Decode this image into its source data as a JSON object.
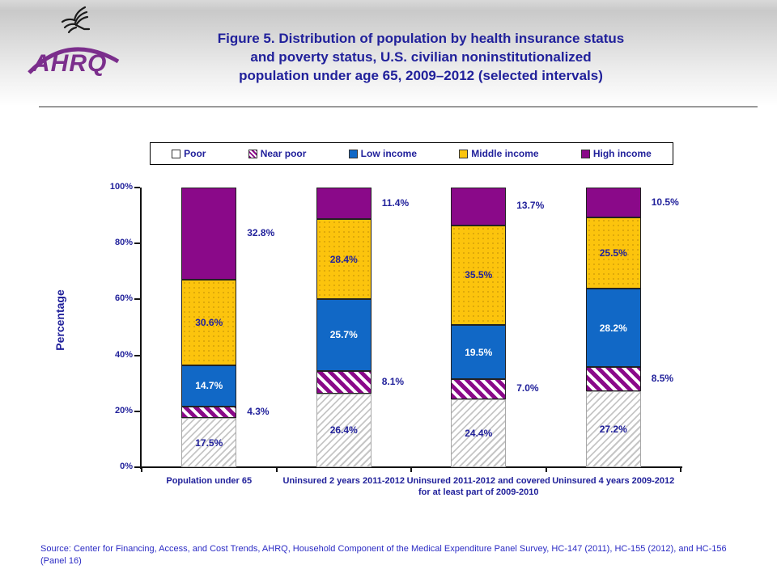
{
  "header": {
    "logo_text": "AHRQ",
    "eagle_icon": "hhs-eagle-icon",
    "title_lines": [
      "Figure 5. Distribution of population by health insurance status",
      "and poverty status, U.S. civilian noninstitutionalized",
      "population under age 65, 2009–2012 (selected intervals)"
    ]
  },
  "legend": {
    "items": [
      {
        "label": "Poor",
        "key": "poor"
      },
      {
        "label": "Near poor",
        "key": "nearpoor"
      },
      {
        "label": "Low income",
        "key": "low"
      },
      {
        "label": "Middle income",
        "key": "middle"
      },
      {
        "label": "High income",
        "key": "high"
      }
    ]
  },
  "chart_data": {
    "type": "bar",
    "stacked": true,
    "ylabel": "Percentage",
    "ylim": [
      0,
      100
    ],
    "grid": false,
    "legend_position": "top",
    "ytick_labels": [
      "0%",
      "20%",
      "40%",
      "60%",
      "80%",
      "100%"
    ],
    "categories": [
      "Population under 65",
      "Uninsured 2 years 2011-2012",
      "Uninsured 2011-2012 and covered for at least part of 2009-2010",
      "Uninsured 4 years 2009-2012"
    ],
    "series": [
      {
        "name": "Poor",
        "key": "poor",
        "label_position": "inside",
        "label_color": "#21219B",
        "values": [
          17.5,
          26.4,
          24.4,
          27.2
        ]
      },
      {
        "name": "Near poor",
        "key": "nearpoor",
        "label_position": "outside",
        "label_color": "#21219B",
        "values": [
          4.3,
          8.1,
          7.0,
          8.5
        ]
      },
      {
        "name": "Low income",
        "key": "low",
        "label_position": "inside",
        "label_color": "#FFFFFF",
        "values": [
          14.7,
          25.7,
          19.5,
          28.2
        ]
      },
      {
        "name": "Middle income",
        "key": "middle",
        "label_position": "inside",
        "label_color": "#21219B",
        "values": [
          30.6,
          28.4,
          35.5,
          25.5
        ]
      },
      {
        "name": "High income",
        "key": "high",
        "label_position": "outside",
        "label_color": "#21219B",
        "values": [
          32.8,
          11.4,
          13.7,
          10.5
        ]
      }
    ],
    "value_label_suffix": "%"
  },
  "colors": {
    "title_text": "#21219B",
    "bar_blue": "#1168C6",
    "bar_gold": "#FCC40D",
    "bar_purple": "#8A0989",
    "hatch_gray": "#C6C6C6",
    "logo_purple": "#7B2E8C",
    "source_text": "#2B2BC4"
  },
  "source": {
    "text": "Source: Center for Financing, Access, and Cost Trends, AHRQ, Household Component of the Medical Expenditure Panel Survey, HC-147 (2011), HC-155 (2012), and HC-156 (Panel 16)"
  }
}
